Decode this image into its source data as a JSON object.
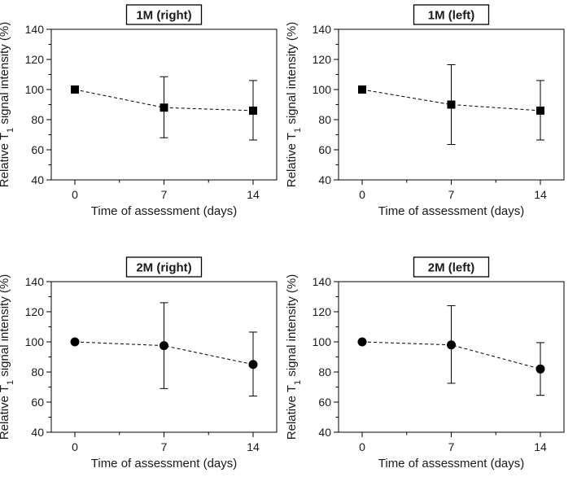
{
  "chart_data": [
    {
      "type": "scatter",
      "title": "1M (right)",
      "xlabel": "Time of assessment (days)",
      "ylabel_parts": [
        "Relative T",
        "1",
        " signal intensity (%)"
      ],
      "marker": "square",
      "categories": [
        "0",
        "7",
        "14"
      ],
      "yticks": [
        "40",
        "60",
        "80",
        "100",
        "120",
        "140"
      ],
      "ylim": [
        40,
        140
      ],
      "values": [
        100,
        88,
        86
      ],
      "error_low": [
        100,
        68,
        66.5
      ],
      "error_high": [
        100,
        108.5,
        106
      ]
    },
    {
      "type": "scatter",
      "title": "1M (left)",
      "xlabel": "Time of assessment (days)",
      "ylabel_parts": [
        "Relative T",
        "1",
        " signal intensity (%)"
      ],
      "marker": "square",
      "categories": [
        "0",
        "7",
        "14"
      ],
      "yticks": [
        "40",
        "60",
        "80",
        "100",
        "120",
        "140"
      ],
      "ylim": [
        40,
        140
      ],
      "values": [
        100,
        90,
        86
      ],
      "error_low": [
        100,
        63.5,
        66.5
      ],
      "error_high": [
        100,
        116.5,
        106
      ]
    },
    {
      "type": "scatter",
      "title": "2M (right)",
      "xlabel": "Time of assessment (days)",
      "ylabel_parts": [
        "Relative T",
        "1",
        " signal intensity (%)"
      ],
      "marker": "circle",
      "categories": [
        "0",
        "7",
        "14"
      ],
      "yticks": [
        "40",
        "60",
        "80",
        "100",
        "120",
        "140"
      ],
      "ylim": [
        40,
        140
      ],
      "values": [
        100,
        97.5,
        85
      ],
      "error_low": [
        100,
        69,
        64
      ],
      "error_high": [
        100,
        126,
        106.5
      ]
    },
    {
      "type": "scatter",
      "title": "2M (left)",
      "xlabel": "Time of assessment (days)",
      "ylabel_parts": [
        "Relative T",
        "1",
        " signal intensity (%)"
      ],
      "marker": "circle",
      "categories": [
        "0",
        "7",
        "14"
      ],
      "yticks": [
        "40",
        "60",
        "80",
        "100",
        "120",
        "140"
      ],
      "ylim": [
        40,
        140
      ],
      "values": [
        100,
        98,
        82
      ],
      "error_low": [
        100,
        72.5,
        64.5
      ],
      "error_high": [
        100,
        124,
        99.5
      ]
    }
  ],
  "colors": {
    "ink": "#000000",
    "text": "#1a1a1a"
  }
}
